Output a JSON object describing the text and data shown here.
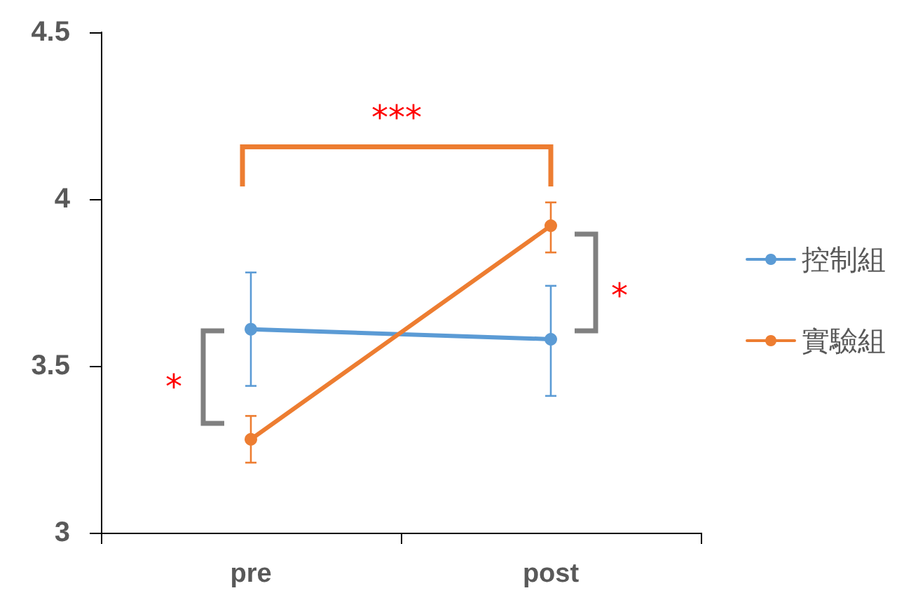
{
  "chart_data": {
    "type": "line",
    "categories": [
      "pre",
      "post"
    ],
    "series": [
      {
        "name": "控制組",
        "color": "#5b9bd5",
        "values": [
          3.61,
          3.58
        ],
        "errors": [
          [
            3.44,
            3.78
          ],
          [
            3.41,
            3.74
          ]
        ]
      },
      {
        "name": "實驗組",
        "color": "#ed7d31",
        "values": [
          3.28,
          3.92
        ],
        "errors": [
          [
            3.21,
            3.35
          ],
          [
            3.84,
            3.99
          ]
        ]
      }
    ],
    "ylim": [
      3,
      4.5
    ],
    "yticks": [
      3,
      3.5,
      4,
      4.5
    ],
    "marker": "circle",
    "line_style": "solid",
    "legend": "right",
    "annotations": [
      "***",
      "*",
      "*"
    ]
  }
}
